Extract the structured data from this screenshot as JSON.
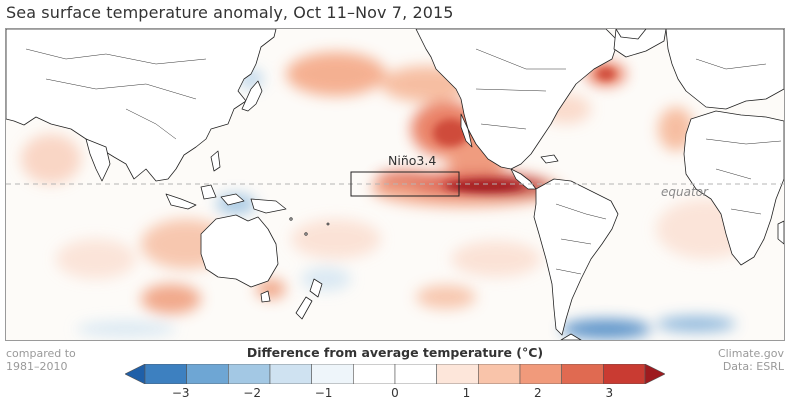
{
  "title": "Sea surface temperature anomaly, Oct 11–Nov 7, 2015",
  "map": {
    "box_label": "Niño3.4",
    "equator_label": "equator"
  },
  "baseline_note": "compared to\n1981–2010",
  "credit": {
    "line1": "Climate.gov",
    "line2": "Data: ESRL"
  },
  "legend": {
    "title": "Difference from average temperature (°C)",
    "ticks": [
      {
        "value": -3,
        "label": "−3"
      },
      {
        "value": -2,
        "label": "−2"
      },
      {
        "value": -1,
        "label": "−1"
      },
      {
        "value": 0,
        "label": "0"
      },
      {
        "value": 1,
        "label": "1"
      },
      {
        "value": 2,
        "label": "2"
      },
      {
        "value": 3,
        "label": "3"
      }
    ],
    "min": -3.5,
    "max": 3.5,
    "colors": [
      "#1f5fa8",
      "#3d80c0",
      "#6ea6d4",
      "#a3c8e4",
      "#cfe2f1",
      "#eef5fa",
      "#ffffff",
      "#ffffff",
      "#fde6da",
      "#f9c4aa",
      "#f19a7b",
      "#e06a51",
      "#c93b32",
      "#9e1b1f"
    ]
  }
}
